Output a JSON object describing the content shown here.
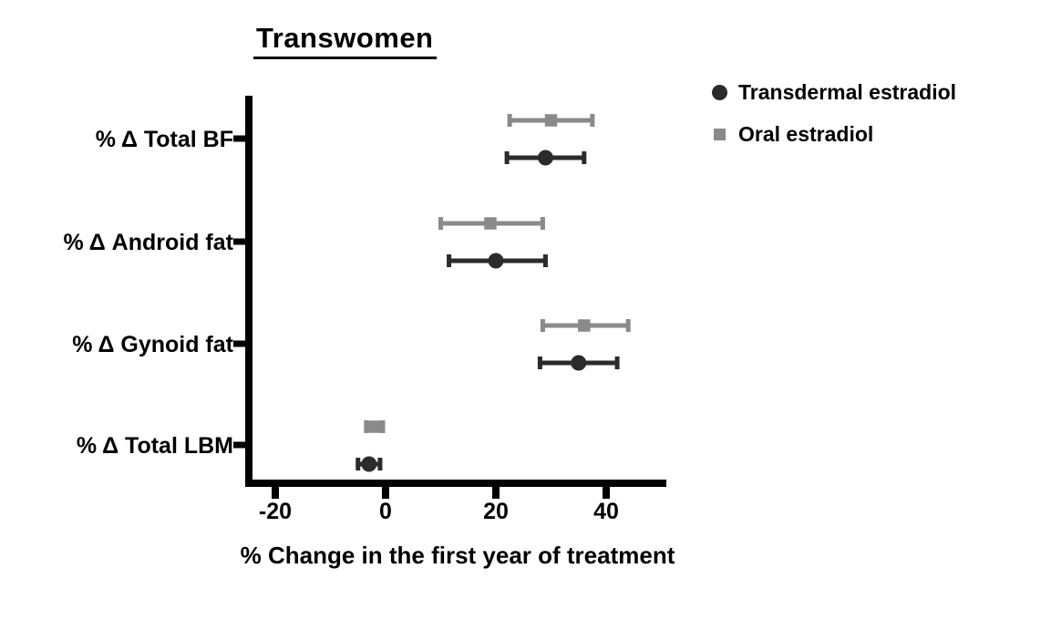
{
  "title": "Transwomen",
  "colors": {
    "transdermal": "#2b2b2b",
    "oral": "#8a8a8a",
    "axis": "#000000",
    "text": "#000000",
    "background": "#ffffff"
  },
  "legend": {
    "items": [
      {
        "label": "Transdermal estradiol",
        "marker": "circle",
        "color": "#2b2b2b"
      },
      {
        "label": "Oral estradiol",
        "marker": "square",
        "color": "#8a8a8a"
      }
    ]
  },
  "chart_data": {
    "type": "scatter",
    "subtype": "horizontal-point-estimates-with-error-bars",
    "title": "Transwomen",
    "xlabel": "% Change in the first year of treatment",
    "ylabel": "",
    "xticks": [
      -20,
      0,
      20,
      40
    ],
    "xlim": [
      -25,
      51
    ],
    "grid": false,
    "legend_position": "top-right",
    "categories": [
      "% Δ Total BF",
      "% Δ Android fat",
      "% Δ Gynoid fat",
      "% Δ Total LBM"
    ],
    "series": [
      {
        "name": "Oral estradiol",
        "marker": "square",
        "color": "#8a8a8a",
        "values": [
          30,
          19,
          36,
          -2
        ],
        "ci_low": [
          22.5,
          10,
          28.5,
          -3.5
        ],
        "ci_high": [
          37.5,
          28.5,
          44,
          -0.5
        ]
      },
      {
        "name": "Transdermal estradiol",
        "marker": "circle",
        "color": "#2b2b2b",
        "values": [
          29,
          20,
          35,
          -3
        ],
        "ci_low": [
          22,
          11.5,
          28,
          -5
        ],
        "ci_high": [
          36,
          29,
          42,
          -1
        ]
      }
    ]
  }
}
